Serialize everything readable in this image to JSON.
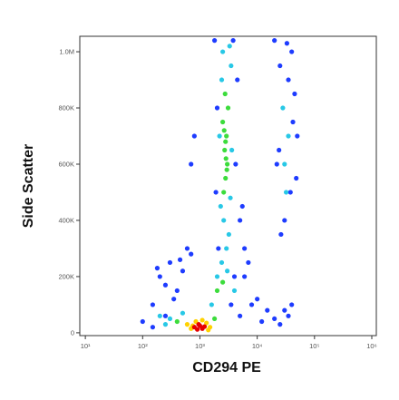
{
  "chart_data": {
    "type": "scatter",
    "x_label": "CD294 PE",
    "y_label": "Side Scatter",
    "xscale": "log",
    "xlim": [
      8,
      1200000
    ],
    "ylim": [
      -10000,
      1055000
    ],
    "xticks": [
      {
        "value": 10,
        "label": "10¹"
      },
      {
        "value": 100,
        "label": "10²"
      },
      {
        "value": 1000,
        "label": "10³"
      },
      {
        "value": 10000,
        "label": "10⁴"
      },
      {
        "value": 100000,
        "label": "10⁵"
      },
      {
        "value": 1000000,
        "label": "10⁶"
      }
    ],
    "yticks": [
      0,
      {
        "value": 200000,
        "label": "200K"
      },
      {
        "value": 400000,
        "label": "400K"
      },
      {
        "value": 600000,
        "label": "600K"
      },
      {
        "value": 800000,
        "label": "800K"
      },
      {
        "value": 1000000,
        "label": "1.0M"
      }
    ],
    "series": [
      {
        "color": "#1e3cff",
        "x": [
          1900,
          4200,
          2000,
          4500,
          1800,
          3800,
          2100,
          4000,
          5000,
          6000,
          7000,
          5500,
          20000,
          25000,
          40000,
          45000,
          50000,
          22000,
          38000,
          30000,
          26000,
          42000,
          35000,
          48000,
          24000,
          33000,
          20000,
          30000,
          40000,
          25000,
          35000,
          100,
          150,
          200,
          300,
          400,
          500,
          600,
          150,
          250,
          350,
          700,
          5000,
          8000,
          10000,
          12000,
          15000,
          250,
          180,
          450,
          700,
          800,
          3500,
          6000
        ],
        "values": [
          500000,
          600000,
          800000,
          900000,
          1040000,
          1040000,
          300000,
          200000,
          400000,
          300000,
          250000,
          450000,
          1040000,
          950000,
          1000000,
          850000,
          700000,
          600000,
          500000,
          400000,
          350000,
          750000,
          900000,
          550000,
          650000,
          1030000,
          50000,
          80000,
          100000,
          30000,
          60000,
          40000,
          100000,
          200000,
          250000,
          150000,
          220000,
          300000,
          20000,
          60000,
          120000,
          280000,
          60000,
          100000,
          120000,
          40000,
          80000,
          170000,
          230000,
          260000,
          600000,
          700000,
          100000,
          200000
        ]
      },
      {
        "color": "#28c8e6",
        "x": [
          2300,
          3400,
          2400,
          3500,
          2200,
          3600,
          2500,
          3300,
          2600,
          3200,
          2900,
          2400,
          300,
          500,
          2000,
          3000,
          1600,
          4000,
          250,
          200,
          30000,
          35000,
          28000,
          32000
        ],
        "values": [
          450000,
          480000,
          900000,
          950000,
          700000,
          650000,
          1000000,
          1020000,
          400000,
          350000,
          300000,
          250000,
          50000,
          70000,
          200000,
          220000,
          100000,
          150000,
          30000,
          60000,
          600000,
          700000,
          800000,
          500000
        ]
      },
      {
        "color": "#3cdc3c",
        "x": [
          2600,
          2800,
          3000,
          2700,
          2900,
          2500,
          3100,
          2750,
          2850,
          2650,
          2950,
          2800,
          2000,
          400,
          1800,
          2500
        ],
        "values": [
          500000,
          550000,
          600000,
          650000,
          700000,
          750000,
          800000,
          850000,
          620000,
          720000,
          580000,
          680000,
          150000,
          40000,
          50000,
          180000
        ]
      },
      {
        "color": "#ffd200",
        "x": [
          600,
          700,
          1300,
          1500,
          850,
          1100,
          750,
          1400
        ],
        "values": [
          30000,
          15000,
          35000,
          20000,
          40000,
          45000,
          25000,
          10000
        ]
      },
      {
        "color": "#e60000",
        "x": [
          800,
          1000,
          1100,
          950,
          1200,
          900
        ],
        "values": [
          20000,
          25000,
          15000,
          30000,
          22000,
          12000
        ]
      }
    ]
  }
}
